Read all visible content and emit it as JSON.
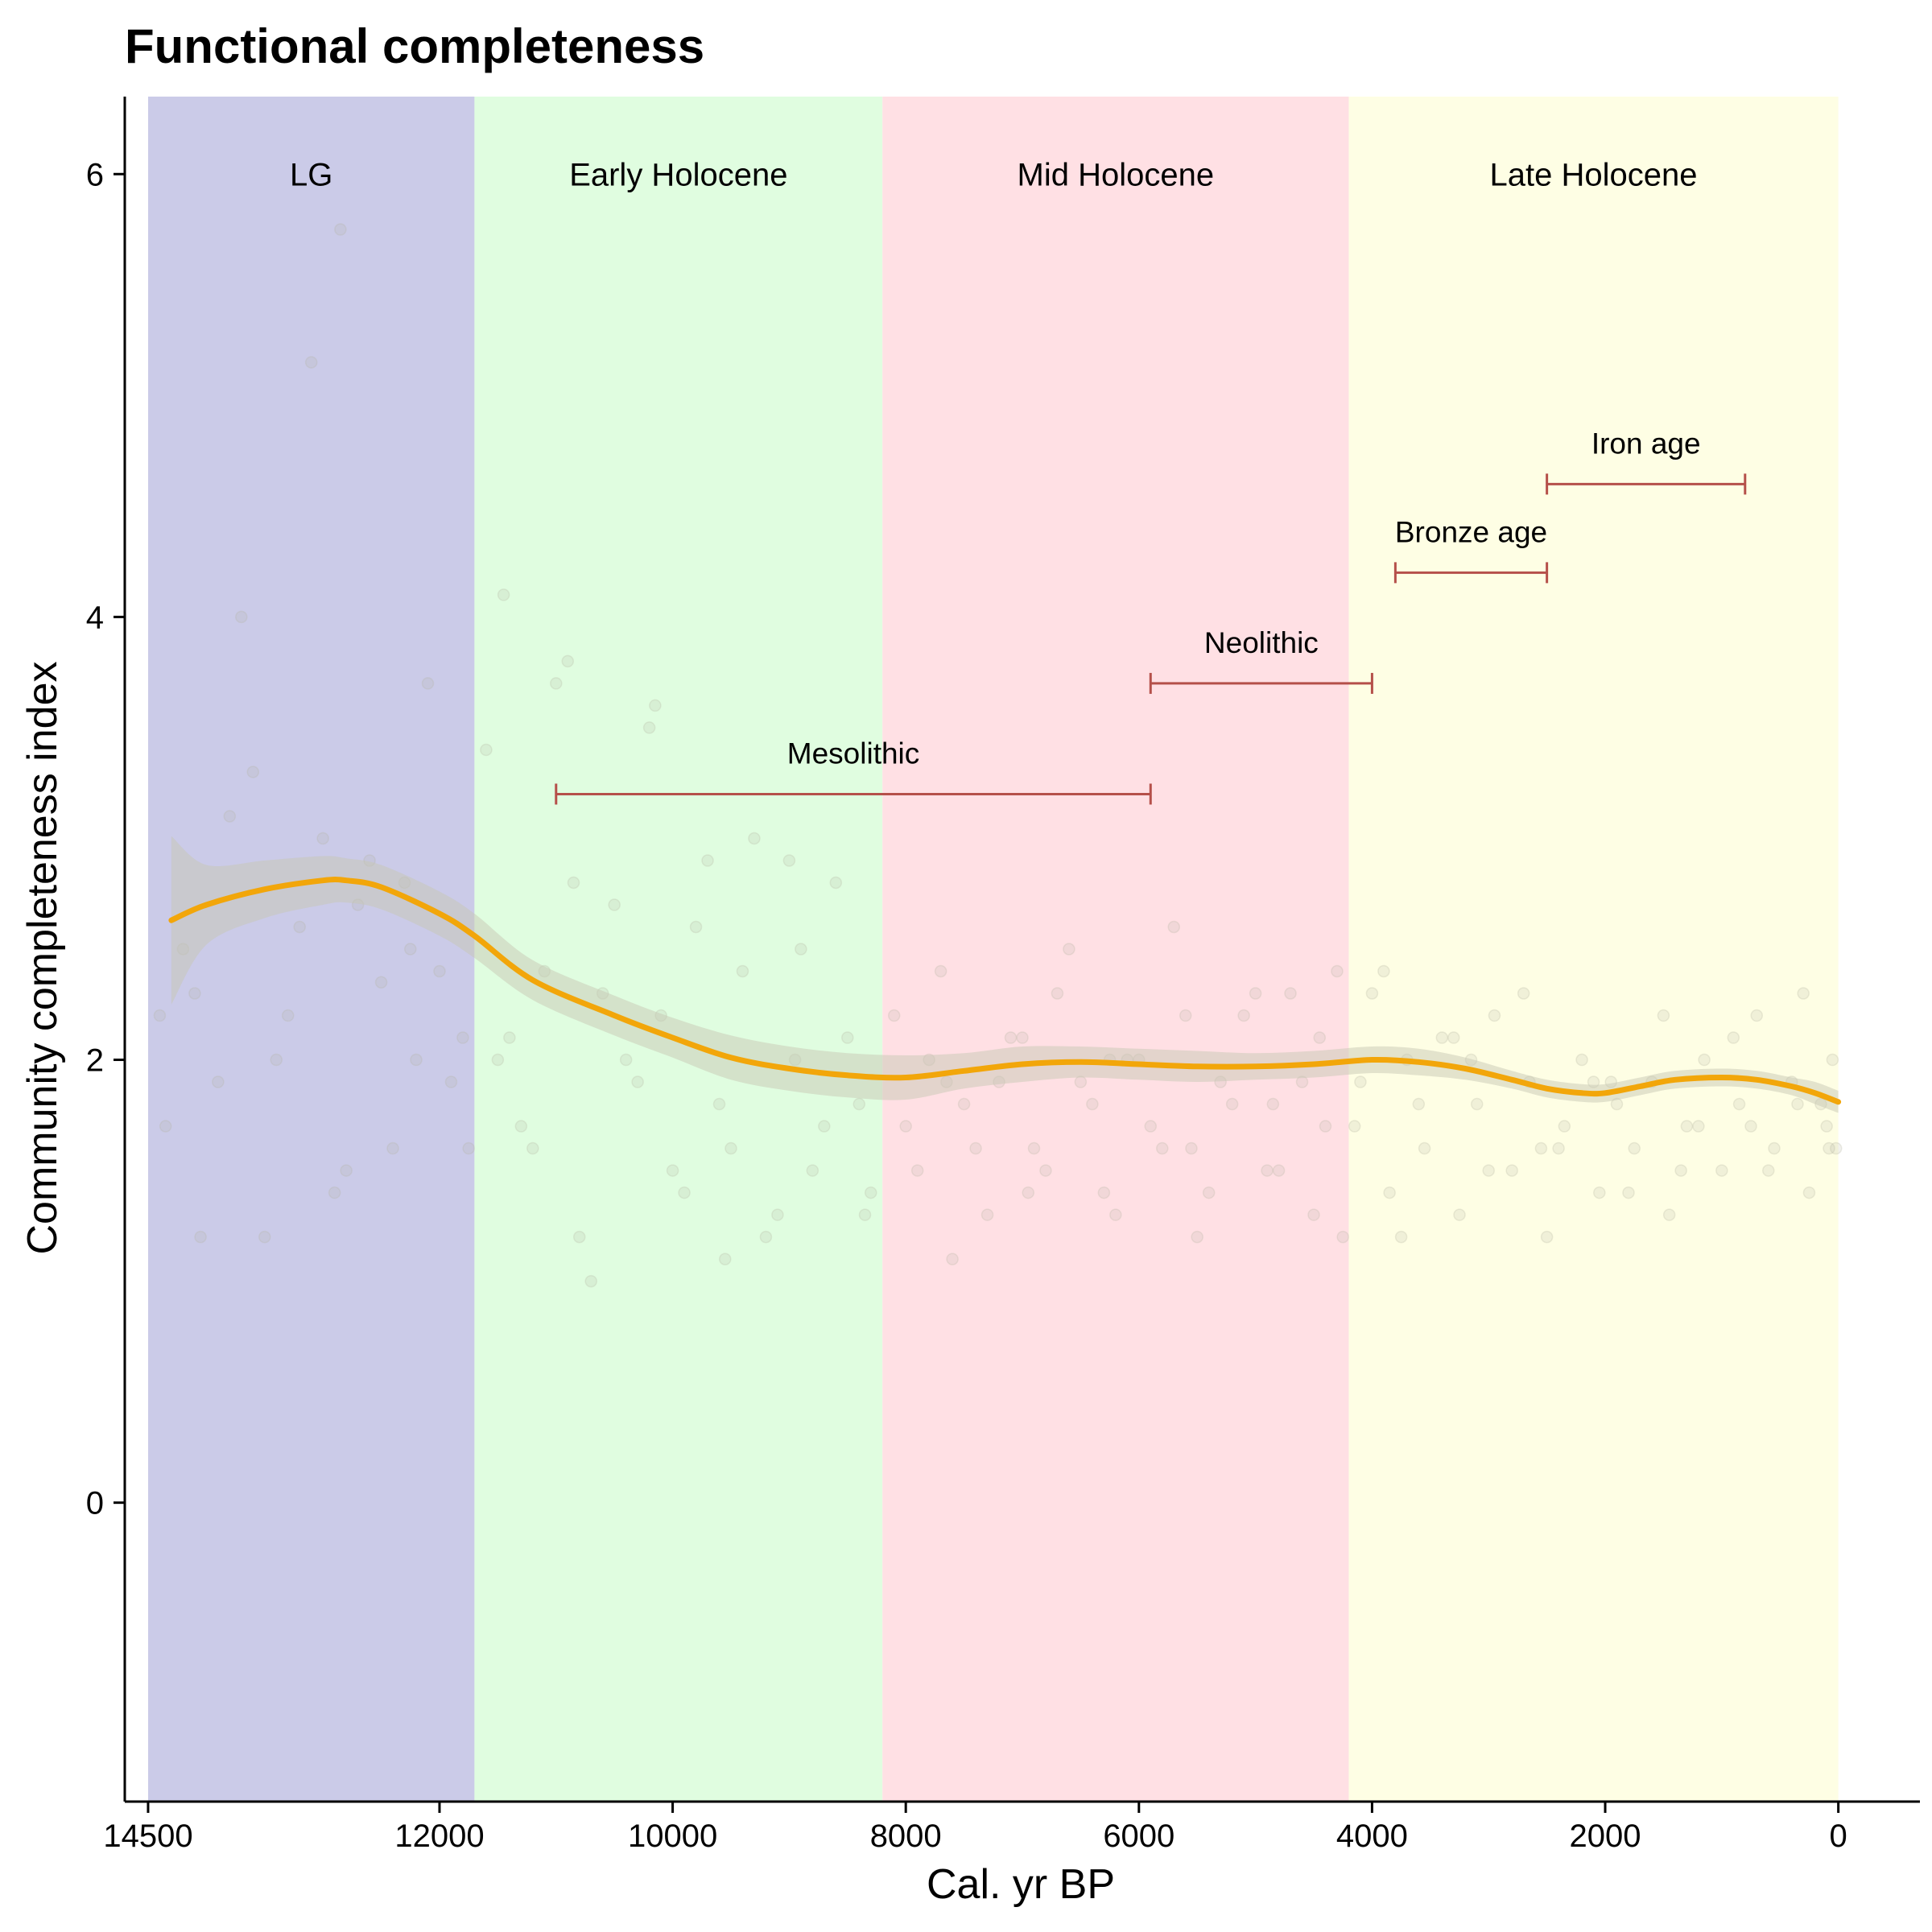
{
  "chart_data": {
    "type": "line",
    "title": "Functional completeness",
    "xlabel": "Cal. yr BP",
    "ylabel": "Community completeness index",
    "xlim": [
      14700,
      -700
    ],
    "ylim": [
      -1.35,
      6.35
    ],
    "x_reversed": true,
    "x_ticks": [
      14500,
      12000,
      10000,
      8000,
      6000,
      4000,
      2000,
      0
    ],
    "y_ticks": [
      0,
      2,
      4,
      6
    ],
    "grid": false,
    "periods": [
      {
        "label": "LG",
        "start": 14500,
        "end": 11700,
        "color": "#cbcbe8"
      },
      {
        "label": "Early Holocene",
        "start": 11700,
        "end": 8200,
        "color": "#e0fde0"
      },
      {
        "label": "Mid Holocene",
        "start": 8200,
        "end": 4200,
        "color": "#ffe0e4"
      },
      {
        "label": "Late Holocene",
        "start": 4200,
        "end": 0,
        "color": "#fefee4"
      }
    ],
    "period_label_y": 6,
    "cultural_ages": [
      {
        "label": "Mesolithic",
        "start": 11000,
        "end": 5900,
        "y": 3.2
      },
      {
        "label": "Neolithic",
        "start": 5900,
        "end": 4000,
        "y": 3.7
      },
      {
        "label": "Bronze age",
        "start": 3800,
        "end": 2500,
        "y": 4.2
      },
      {
        "label": "Iron age",
        "start": 2500,
        "end": 800,
        "y": 4.6
      }
    ],
    "age_bar_color": "#b5504a",
    "smooth_color": "#f2a60a",
    "band_color": "#c8c8b4",
    "point_color": "#b4b4a0",
    "series": [
      {
        "type": "smooth",
        "x": [
          14300,
          14000,
          13500,
          13000,
          12800,
          12500,
          12000,
          11700,
          11200,
          10500,
          10000,
          9500,
          9000,
          8500,
          8000,
          7500,
          7000,
          6500,
          6000,
          5500,
          5000,
          4500,
          4000,
          3600,
          3200,
          2800,
          2500,
          2200,
          2000,
          1700,
          1400,
          1000,
          700,
          400,
          200,
          0
        ],
        "y": [
          2.63,
          2.7,
          2.77,
          2.81,
          2.81,
          2.78,
          2.66,
          2.56,
          2.36,
          2.2,
          2.1,
          2.01,
          1.96,
          1.93,
          1.92,
          1.95,
          1.98,
          1.99,
          1.98,
          1.97,
          1.97,
          1.98,
          2.0,
          1.99,
          1.96,
          1.91,
          1.87,
          1.85,
          1.85,
          1.88,
          1.91,
          1.92,
          1.91,
          1.88,
          1.85,
          1.81
        ],
        "lower": [
          2.25,
          2.52,
          2.64,
          2.7,
          2.71,
          2.68,
          2.56,
          2.46,
          2.27,
          2.11,
          2.01,
          1.91,
          1.86,
          1.83,
          1.82,
          1.87,
          1.9,
          1.92,
          1.91,
          1.9,
          1.91,
          1.92,
          1.94,
          1.93,
          1.91,
          1.87,
          1.83,
          1.81,
          1.81,
          1.84,
          1.87,
          1.88,
          1.87,
          1.84,
          1.8,
          1.76
        ],
        "upper": [
          3.01,
          2.88,
          2.9,
          2.92,
          2.91,
          2.88,
          2.76,
          2.66,
          2.45,
          2.29,
          2.19,
          2.11,
          2.06,
          2.03,
          2.02,
          2.03,
          2.06,
          2.06,
          2.05,
          2.04,
          2.03,
          2.04,
          2.06,
          2.05,
          2.01,
          1.95,
          1.91,
          1.89,
          1.89,
          1.92,
          1.95,
          1.96,
          1.95,
          1.92,
          1.9,
          1.86
        ]
      },
      {
        "type": "scatter",
        "x": [
          14350,
          14100,
          13800,
          13500,
          13200,
          13000,
          12800,
          12600,
          12400,
          12200,
          12000,
          11800,
          14200,
          13900,
          13600,
          13300,
          12900,
          12700,
          12300,
          12100,
          11900,
          14400,
          13700,
          13100,
          12500,
          11750,
          13400,
          12850,
          12250,
          14050,
          11600,
          11400,
          11200,
          11000,
          10800,
          10600,
          10400,
          10200,
          10000,
          9800,
          9600,
          9400,
          9200,
          9000,
          8800,
          8600,
          8400,
          11500,
          11300,
          11100,
          10900,
          10700,
          10500,
          10300,
          10100,
          9900,
          9700,
          9500,
          9300,
          9100,
          8900,
          8700,
          8500,
          8300,
          11450,
          10850,
          10150,
          9550,
          8950,
          8350,
          8100,
          7900,
          7700,
          7500,
          7300,
          7100,
          6900,
          6700,
          6500,
          6300,
          6100,
          5900,
          5700,
          5500,
          5300,
          5100,
          4900,
          4700,
          4500,
          4300,
          8000,
          7800,
          7600,
          7400,
          7200,
          7000,
          6800,
          6600,
          6400,
          6200,
          6000,
          5800,
          5600,
          5400,
          5200,
          5000,
          4800,
          4600,
          4400,
          4250,
          7650,
          6950,
          6250,
          5550,
          4850,
          4450,
          4150,
          4000,
          3850,
          3700,
          3550,
          3400,
          3250,
          3100,
          2950,
          2800,
          2650,
          2500,
          2350,
          2200,
          2050,
          1900,
          1750,
          1600,
          1450,
          1300,
          1150,
          1000,
          850,
          700,
          550,
          400,
          250,
          100,
          50,
          4100,
          3900,
          3600,
          3300,
          3000,
          2700,
          2400,
          2100,
          1800,
          1500,
          1200,
          900,
          600,
          300,
          150,
          20,
          3750,
          3150,
          2550,
          1950,
          1350,
          750,
          350,
          80
        ],
        "y": [
          1.7,
          2.3,
          3.1,
          1.2,
          2.6,
          3.0,
          1.5,
          2.9,
          1.6,
          2.0,
          2.4,
          2.1,
          2.5,
          1.9,
          3.3,
          2.2,
          1.4,
          2.7,
          2.8,
          3.7,
          1.9,
          2.2,
          4.0,
          5.15,
          2.35,
          1.6,
          2.0,
          5.75,
          2.5,
          1.2,
          3.4,
          2.1,
          1.6,
          3.7,
          1.2,
          2.3,
          2.0,
          3.5,
          1.5,
          2.6,
          1.8,
          2.4,
          1.2,
          2.9,
          1.5,
          2.8,
          1.8,
          2.0,
          1.7,
          2.4,
          3.8,
          1.0,
          2.7,
          1.9,
          2.2,
          1.4,
          2.9,
          1.6,
          3.0,
          1.3,
          2.5,
          1.7,
          2.1,
          1.4,
          4.1,
          2.8,
          3.6,
          1.1,
          2.0,
          1.3,
          2.2,
          1.5,
          2.4,
          1.8,
          1.3,
          2.1,
          1.6,
          2.3,
          1.9,
          1.4,
          2.0,
          1.7,
          2.6,
          1.2,
          1.9,
          2.2,
          1.5,
          2.3,
          1.3,
          2.4,
          1.7,
          2.0,
          1.1,
          1.6,
          1.9,
          2.1,
          1.5,
          2.5,
          1.8,
          1.3,
          2.0,
          1.6,
          2.2,
          1.4,
          1.8,
          2.3,
          1.5,
          1.9,
          1.7,
          1.2,
          1.9,
          1.4,
          2.0,
          1.6,
          1.8,
          2.1,
          1.7,
          2.3,
          1.4,
          2.0,
          1.6,
          2.1,
          1.3,
          1.8,
          2.2,
          1.5,
          1.9,
          1.2,
          1.7,
          2.0,
          1.4,
          1.8,
          1.6,
          1.9,
          1.3,
          1.7,
          2.0,
          1.5,
          1.8,
          2.2,
          1.6,
          1.9,
          1.4,
          1.7,
          2.0,
          1.9,
          2.4,
          1.8,
          2.1,
          1.5,
          2.3,
          1.6,
          1.9,
          1.4,
          2.2,
          1.7,
          2.1,
          1.5,
          2.3,
          1.8,
          1.6,
          1.2,
          2.0,
          1.6,
          1.9,
          1.5,
          1.7,
          1.8,
          1.6
        ]
      }
    ]
  }
}
